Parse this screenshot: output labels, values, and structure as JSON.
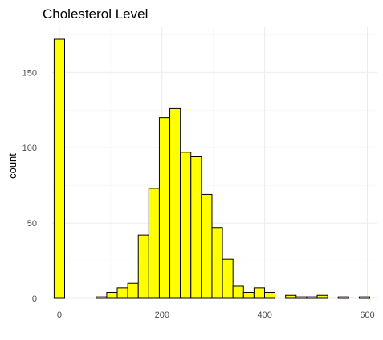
{
  "chart_data": {
    "type": "bar",
    "title": "Cholesterol Level",
    "xlabel": "",
    "ylabel": "count",
    "fill_color": "#ffff00",
    "outline_color": "#000000",
    "grid": true,
    "xlim": [
      -14,
      618
    ],
    "ylim": [
      0,
      180
    ],
    "x_ticks": [
      0,
      200,
      400,
      600
    ],
    "y_ticks": [
      0,
      50,
      100,
      150
    ],
    "bin_width": 20.5,
    "bins": [
      {
        "x": 0,
        "count": 172
      },
      {
        "x": 20.5,
        "count": 0
      },
      {
        "x": 41,
        "count": 0
      },
      {
        "x": 61.5,
        "count": 0
      },
      {
        "x": 82,
        "count": 1
      },
      {
        "x": 102.5,
        "count": 4
      },
      {
        "x": 123,
        "count": 7
      },
      {
        "x": 143.5,
        "count": 10
      },
      {
        "x": 164,
        "count": 42
      },
      {
        "x": 184.5,
        "count": 73
      },
      {
        "x": 205,
        "count": 120
      },
      {
        "x": 225.5,
        "count": 126
      },
      {
        "x": 246,
        "count": 97
      },
      {
        "x": 266.5,
        "count": 94
      },
      {
        "x": 287,
        "count": 69
      },
      {
        "x": 307.5,
        "count": 47
      },
      {
        "x": 328,
        "count": 26
      },
      {
        "x": 348.5,
        "count": 8
      },
      {
        "x": 369,
        "count": 4
      },
      {
        "x": 389.5,
        "count": 7
      },
      {
        "x": 410,
        "count": 4
      },
      {
        "x": 430.5,
        "count": 0
      },
      {
        "x": 451,
        "count": 2
      },
      {
        "x": 471.5,
        "count": 1
      },
      {
        "x": 492,
        "count": 1
      },
      {
        "x": 512.5,
        "count": 2
      },
      {
        "x": 533,
        "count": 0
      },
      {
        "x": 553.5,
        "count": 1
      },
      {
        "x": 574,
        "count": 0
      },
      {
        "x": 594.5,
        "count": 1
      }
    ]
  }
}
